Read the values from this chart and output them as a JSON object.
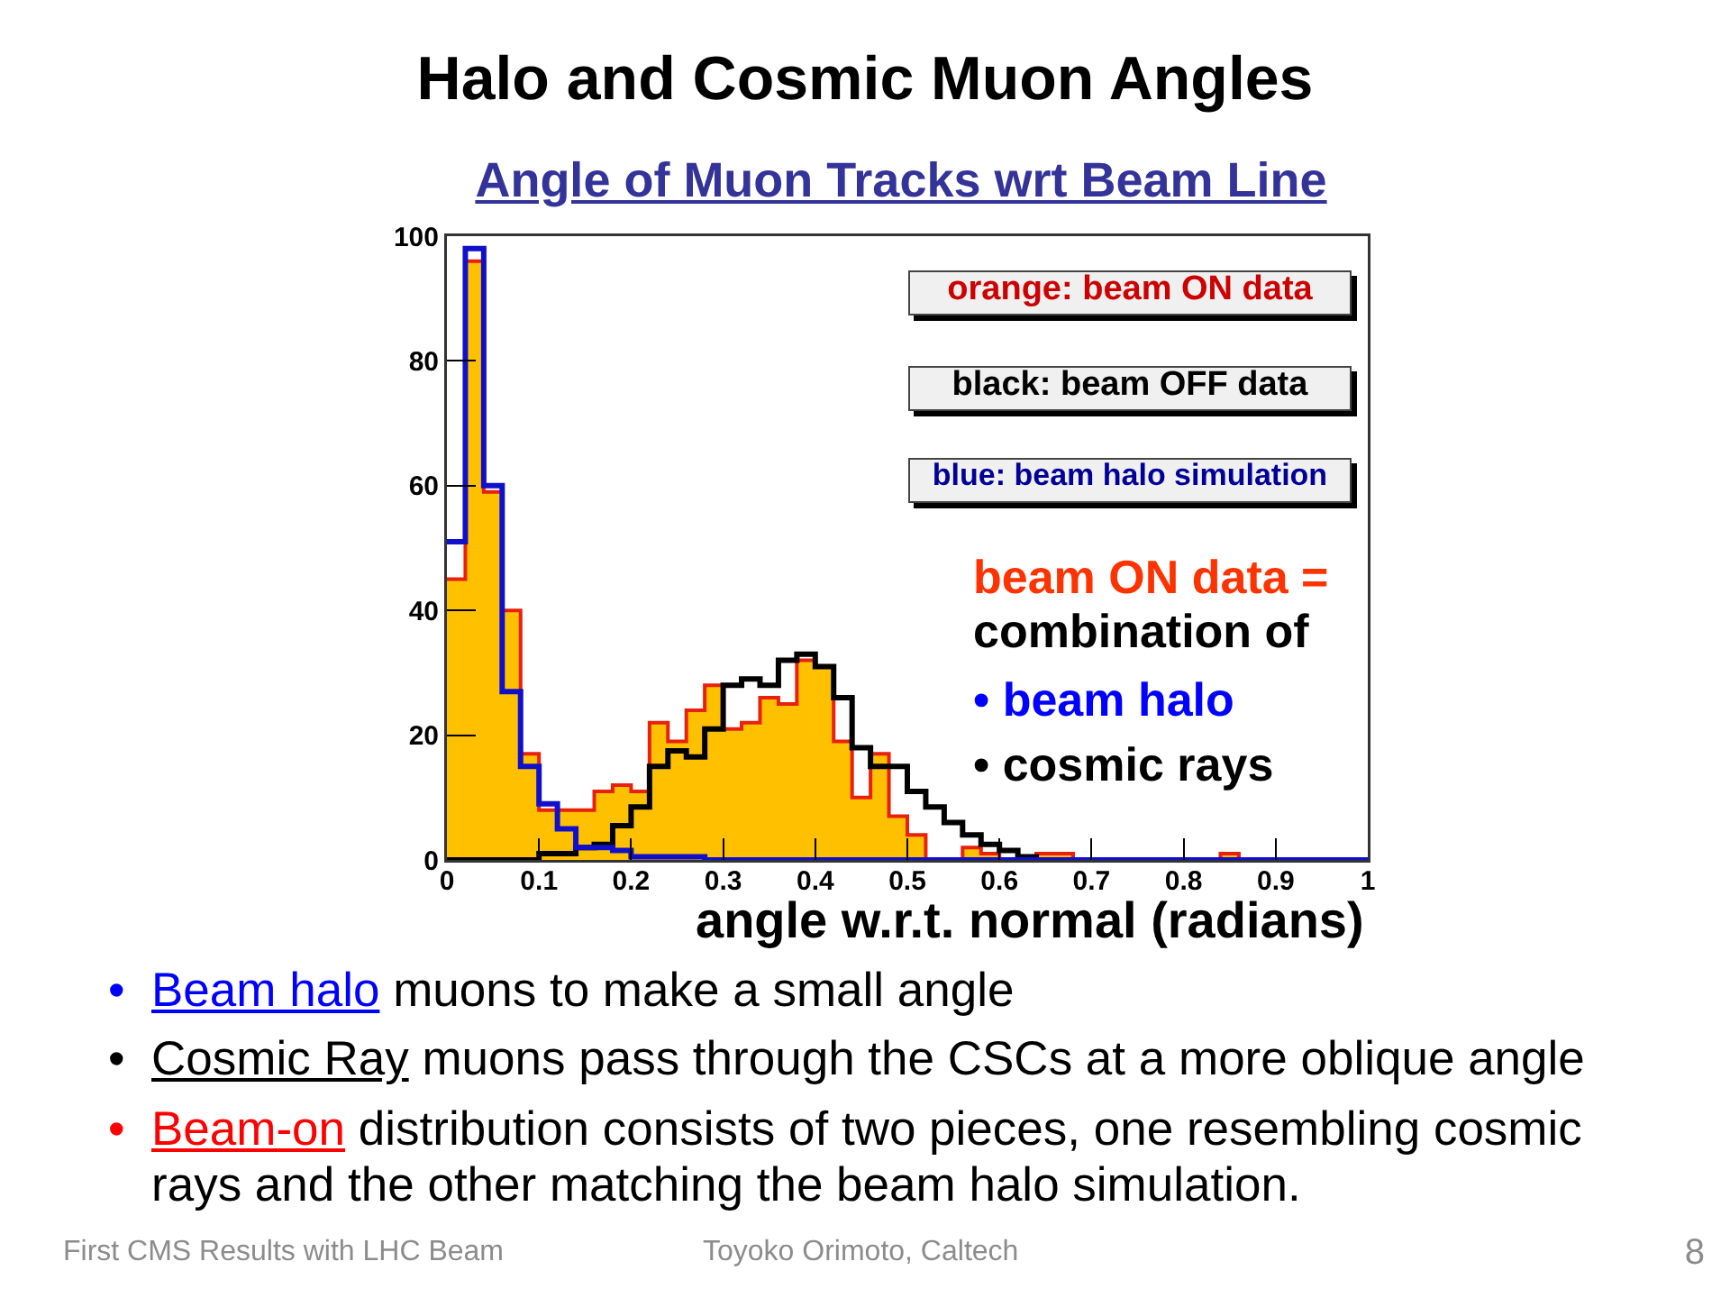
{
  "chart_data": {
    "type": "histogram",
    "title": "Halo and Cosmic Muon Angles",
    "subtitle": "Angle of Muon Tracks wrt Beam Line",
    "xlabel": "angle w.r.t. normal (radians)",
    "bins": [
      0,
      0.02,
      0.04,
      0.06,
      0.08,
      0.1,
      0.12,
      0.14,
      0.16,
      0.18,
      0.2,
      0.22,
      0.24,
      0.26,
      0.28,
      0.3,
      0.32,
      0.34,
      0.36,
      0.38,
      0.4,
      0.42,
      0.44,
      0.46,
      0.48,
      0.5,
      0.52,
      0.54,
      0.56,
      0.58,
      0.6,
      0.62,
      0.64,
      0.66,
      0.68,
      0.7,
      0.72,
      0.74,
      0.76,
      0.78,
      0.8,
      0.82,
      0.84,
      0.86,
      0.88,
      0.9,
      0.92,
      0.94,
      0.96,
      0.98,
      1
    ],
    "series": [
      {
        "color": "#ffc000",
        "values": [
          45,
          96,
          59,
          40,
          17,
          8,
          8,
          8,
          11,
          12,
          11,
          22,
          19,
          24,
          28,
          21,
          22,
          26,
          25,
          32,
          31,
          19,
          10,
          17,
          7,
          4,
          0,
          0,
          2,
          1,
          0,
          0,
          1,
          1,
          0,
          0,
          0,
          0,
          0,
          0,
          0,
          0,
          1,
          0,
          0,
          0,
          0,
          0,
          0,
          0
        ]
      },
      {
        "color": "#000000",
        "values": [
          0,
          0,
          0,
          0,
          0,
          1,
          1,
          2,
          2.5,
          5.5,
          8.5,
          15,
          17.5,
          16.5,
          21,
          28,
          29,
          28,
          32,
          33,
          31,
          26,
          18,
          15,
          15,
          11,
          8.5,
          6,
          4,
          2.5,
          1.5,
          0.5,
          0,
          0,
          0,
          0,
          0,
          0,
          0,
          0,
          0,
          0,
          0,
          0,
          0,
          0,
          0,
          0,
          0,
          0
        ]
      },
      {
        "color": "#1010cc",
        "values": [
          51,
          98,
          60,
          27,
          15,
          9,
          5,
          2,
          2,
          1.5,
          0.5,
          0.5,
          0.5,
          0.5,
          0,
          0,
          0,
          0,
          0,
          0,
          0,
          0,
          0,
          0,
          0,
          0,
          0,
          0,
          0,
          0,
          0,
          0,
          0,
          0,
          0,
          0,
          0,
          0,
          0,
          0,
          0,
          0,
          0,
          0,
          0,
          0,
          0,
          0,
          0,
          0
        ]
      }
    ],
    "xlim": [
      0,
      1
    ],
    "xticks": [
      0,
      0.1,
      0.2,
      0.3,
      0.4,
      0.5,
      0.6,
      0.7,
      0.8,
      0.9,
      1
    ],
    "ylim": [
      0,
      100
    ],
    "yticks": [
      0,
      20,
      40,
      60,
      80,
      100
    ],
    "annotations": [
      "orange: beam ON data",
      "black: beam OFF data",
      "blue: beam halo simulation",
      "beam ON data =",
      "combination of",
      "• beam halo",
      "• cosmic rays",
      "• Beam halo muons to make a small angle",
      "• Cosmic Ray muons pass through the CSCs at a more oblique angle",
      "• Beam-on distribution consists of two pieces, one resembling cosmic rays and the other matching the beam halo simulation.",
      "First CMS Results with LHC Beam",
      "Toyoko Orimoto, Caltech",
      "8"
    ]
  }
}
